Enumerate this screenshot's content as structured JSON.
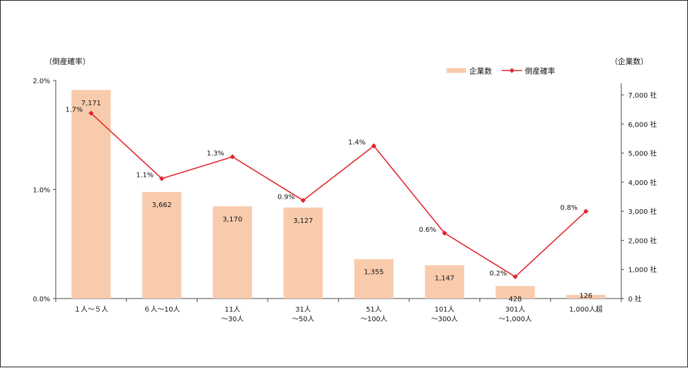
{
  "chart_data": {
    "type": "bar+line",
    "categories": [
      [
        "１人～５人"
      ],
      [
        "６人～10人"
      ],
      [
        "11人",
        "～30人"
      ],
      [
        "31人",
        "～50人"
      ],
      [
        "51人",
        "～100人"
      ],
      [
        "101人",
        "～300人"
      ],
      [
        "301人",
        "～1,000人"
      ],
      [
        "1,000人超"
      ]
    ],
    "series": [
      {
        "name": "企業数",
        "kind": "bar",
        "axis": "right",
        "values": [
          7171,
          3662,
          3170,
          3127,
          1355,
          1147,
          428,
          126
        ],
        "labels": [
          "7,171",
          "3,662",
          "3,170",
          "3,127",
          "1,355",
          "1,147",
          "428",
          "126"
        ],
        "color": "#f8cbad"
      },
      {
        "name": "倒産確率",
        "kind": "line",
        "axis": "left",
        "values": [
          1.7,
          1.1,
          1.3,
          0.9,
          1.4,
          0.6,
          0.2,
          0.8
        ],
        "plot_values": [
          1.7,
          1.1,
          1.3,
          0.9,
          1.4,
          0.6,
          0.2,
          0.8
        ],
        "labels": [
          "1.7%",
          "1.1%",
          "1.3%",
          "0.9%",
          "1.4%",
          "0.6%",
          "0.2%",
          "0.8%"
        ],
        "color": "#e4222b"
      }
    ],
    "y_left": {
      "label": "（倒産確率）",
      "range": [
        0,
        2.0
      ],
      "ticks": [
        0,
        1.0,
        2.0
      ],
      "tick_labels": [
        "0.0%",
        "1.0%",
        "2.0%"
      ]
    },
    "y_right": {
      "label": "（企業数）",
      "range": [
        0,
        7500
      ],
      "ticks": [
        0,
        1000,
        2000,
        3000,
        4000,
        5000,
        6000,
        7000
      ],
      "tick_labels": [
        "0 社",
        "1,000 社",
        "2,000 社",
        "3,000 社",
        "4,000 社",
        "5,000 社",
        "6,000 社",
        "7,000 社"
      ]
    },
    "legend": {
      "position": "top-right",
      "items": [
        "企業数",
        "倒産確率"
      ]
    },
    "grid": false
  }
}
